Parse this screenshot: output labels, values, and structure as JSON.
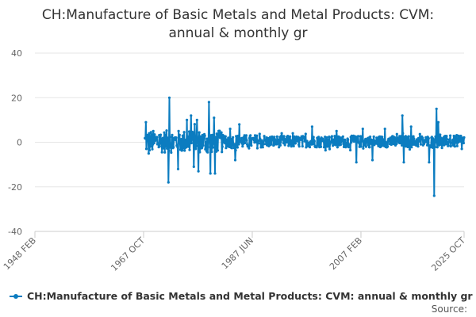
{
  "colors": {
    "series": "#0b7cc0",
    "grid": "#e6e6e6",
    "axis": "#cccccc",
    "text": "#666666"
  },
  "source_label": "Source:",
  "chart_data": {
    "type": "line",
    "title_lines": [
      "CH:Manufacture of Basic Metals and Metal Products: CVM:",
      "annual & monthly gr"
    ],
    "title": "CH:Manufacture of Basic Metals and Metal Products: CVM: annual & monthly gr",
    "xlabel": "",
    "ylabel": "",
    "ylim": [
      -40,
      40
    ],
    "yticks": [
      40,
      20,
      0,
      -20,
      -40
    ],
    "xlim": [
      "1948-02",
      "2025-10"
    ],
    "xticks": [
      {
        "label": "1948 FEB",
        "date": "1948-02"
      },
      {
        "label": "1967 OCT",
        "date": "1967-10"
      },
      {
        "label": "1987 JUN",
        "date": "1987-06"
      },
      {
        "label": "2007 FEB",
        "date": "2007-02"
      },
      {
        "label": "2025 OCT",
        "date": "2025-10"
      }
    ],
    "grid": "horizontal",
    "legend_position": "bottom-left",
    "series": [
      {
        "name": "CH:Manufacture of Basic Metals and Metal Products: CVM: annual & monthly gr",
        "marker": "circle",
        "start": "1968-01",
        "frequency": "monthly",
        "peaks": [
          {
            "date": "1968-03",
            "value": 9
          },
          {
            "date": "1968-09",
            "value": -5
          },
          {
            "date": "1972-06",
            "value": 20
          },
          {
            "date": "1972-04",
            "value": -18
          },
          {
            "date": "1974-01",
            "value": -12
          },
          {
            "date": "1975-08",
            "value": 10
          },
          {
            "date": "1976-05",
            "value": 12
          },
          {
            "date": "1976-11",
            "value": -11
          },
          {
            "date": "1977-06",
            "value": 10
          },
          {
            "date": "1977-09",
            "value": -13
          },
          {
            "date": "1979-08",
            "value": 18
          },
          {
            "date": "1979-11",
            "value": -14
          },
          {
            "date": "1980-07",
            "value": 11
          },
          {
            "date": "1980-09",
            "value": -14
          },
          {
            "date": "1983-06",
            "value": 6
          },
          {
            "date": "1985-02",
            "value": 8
          },
          {
            "date": "1984-05",
            "value": -8
          },
          {
            "date": "1998-04",
            "value": 7
          },
          {
            "date": "2002-09",
            "value": 5
          },
          {
            "date": "2006-04",
            "value": -9
          },
          {
            "date": "2007-06",
            "value": 6
          },
          {
            "date": "2009-03",
            "value": -8
          },
          {
            "date": "2011-06",
            "value": 6
          },
          {
            "date": "2014-08",
            "value": 12
          },
          {
            "date": "2014-11",
            "value": -9
          },
          {
            "date": "2016-03",
            "value": 7
          },
          {
            "date": "2020-05",
            "value": -24
          },
          {
            "date": "2020-10",
            "value": 15
          },
          {
            "date": "2019-06",
            "value": -9
          },
          {
            "date": "2021-02",
            "value": 9
          },
          {
            "date": "2023-04",
            "value": 3
          },
          {
            "date": "2025-05",
            "value": -3
          }
        ]
      }
    ]
  }
}
